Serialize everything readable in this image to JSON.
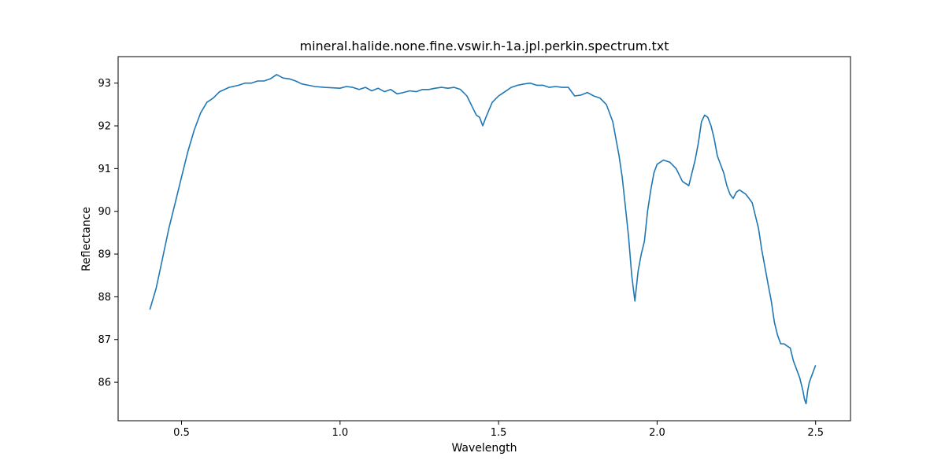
{
  "chart_data": {
    "type": "line",
    "title": "mineral.halide.none.fine.vswir.h-1a.jpl.perkin.spectrum.txt",
    "xlabel": "Wavelength",
    "ylabel": "Reflectance",
    "xlim": [
      0.3,
      2.61
    ],
    "ylim": [
      85.1,
      93.62
    ],
    "xticks": [
      0.5,
      1.0,
      1.5,
      2.0,
      2.5
    ],
    "xtick_labels": [
      "0.5",
      "1.0",
      "1.5",
      "2.0",
      "2.5"
    ],
    "yticks": [
      86,
      87,
      88,
      89,
      90,
      91,
      92,
      93
    ],
    "ytick_labels": [
      "86",
      "87",
      "88",
      "89",
      "90",
      "91",
      "92",
      "93"
    ],
    "grid": false,
    "series_color": "#1f77b4",
    "series": [
      {
        "x": [
          0.4,
          0.42,
          0.44,
          0.46,
          0.48,
          0.5,
          0.52,
          0.54,
          0.56,
          0.58,
          0.6,
          0.62,
          0.65,
          0.68,
          0.7,
          0.72,
          0.74,
          0.76,
          0.78,
          0.8,
          0.82,
          0.84,
          0.86,
          0.88,
          0.9,
          0.92,
          0.95,
          1.0,
          1.02,
          1.04,
          1.06,
          1.08,
          1.1,
          1.12,
          1.14,
          1.16,
          1.18,
          1.2,
          1.22,
          1.24,
          1.26,
          1.28,
          1.3,
          1.32,
          1.34,
          1.36,
          1.38,
          1.4,
          1.42,
          1.43,
          1.44,
          1.45,
          1.46,
          1.48,
          1.5,
          1.52,
          1.54,
          1.56,
          1.58,
          1.6,
          1.62,
          1.64,
          1.66,
          1.68,
          1.7,
          1.72,
          1.74,
          1.76,
          1.78,
          1.8,
          1.82,
          1.84,
          1.86,
          1.87,
          1.88,
          1.89,
          1.9,
          1.91,
          1.92,
          1.93,
          1.94,
          1.95,
          1.96,
          1.97,
          1.98,
          1.99,
          2.0,
          2.02,
          2.04,
          2.06,
          2.08,
          2.1,
          2.12,
          2.13,
          2.14,
          2.15,
          2.16,
          2.17,
          2.18,
          2.19,
          2.2,
          2.21,
          2.22,
          2.23,
          2.24,
          2.25,
          2.26,
          2.27,
          2.28,
          2.29,
          2.3,
          2.31,
          2.32,
          2.33,
          2.34,
          2.35,
          2.36,
          2.37,
          2.38,
          2.39,
          2.4,
          2.41,
          2.42,
          2.43,
          2.44,
          2.45,
          2.46,
          2.465,
          2.47,
          2.475,
          2.48,
          2.49,
          2.5
        ],
        "y": [
          87.7,
          88.2,
          88.9,
          89.6,
          90.2,
          90.8,
          91.4,
          91.9,
          92.3,
          92.55,
          92.65,
          92.8,
          92.9,
          92.95,
          93.0,
          93.0,
          93.05,
          93.05,
          93.1,
          93.2,
          93.12,
          93.1,
          93.05,
          92.98,
          92.95,
          92.92,
          92.9,
          92.88,
          92.92,
          92.9,
          92.85,
          92.9,
          92.82,
          92.88,
          92.8,
          92.85,
          92.75,
          92.78,
          92.82,
          92.8,
          92.85,
          92.85,
          92.88,
          92.9,
          92.88,
          92.9,
          92.85,
          92.7,
          92.4,
          92.25,
          92.2,
          92.0,
          92.2,
          92.55,
          92.7,
          92.8,
          92.9,
          92.95,
          92.98,
          93.0,
          92.95,
          92.95,
          92.9,
          92.92,
          92.9,
          92.9,
          92.7,
          92.72,
          92.78,
          92.7,
          92.65,
          92.5,
          92.1,
          91.7,
          91.3,
          90.8,
          90.1,
          89.4,
          88.5,
          87.9,
          88.6,
          89.0,
          89.3,
          90.0,
          90.5,
          90.9,
          91.1,
          91.2,
          91.15,
          91.0,
          90.7,
          90.6,
          91.2,
          91.6,
          92.1,
          92.25,
          92.2,
          92.0,
          91.7,
          91.3,
          91.1,
          90.9,
          90.6,
          90.4,
          90.3,
          90.45,
          90.5,
          90.45,
          90.4,
          90.3,
          90.2,
          89.9,
          89.6,
          89.1,
          88.7,
          88.3,
          87.9,
          87.4,
          87.1,
          86.9,
          86.9,
          86.85,
          86.8,
          86.5,
          86.3,
          86.1,
          85.8,
          85.6,
          85.5,
          85.8,
          86.0,
          86.2,
          86.4
        ]
      }
    ]
  }
}
